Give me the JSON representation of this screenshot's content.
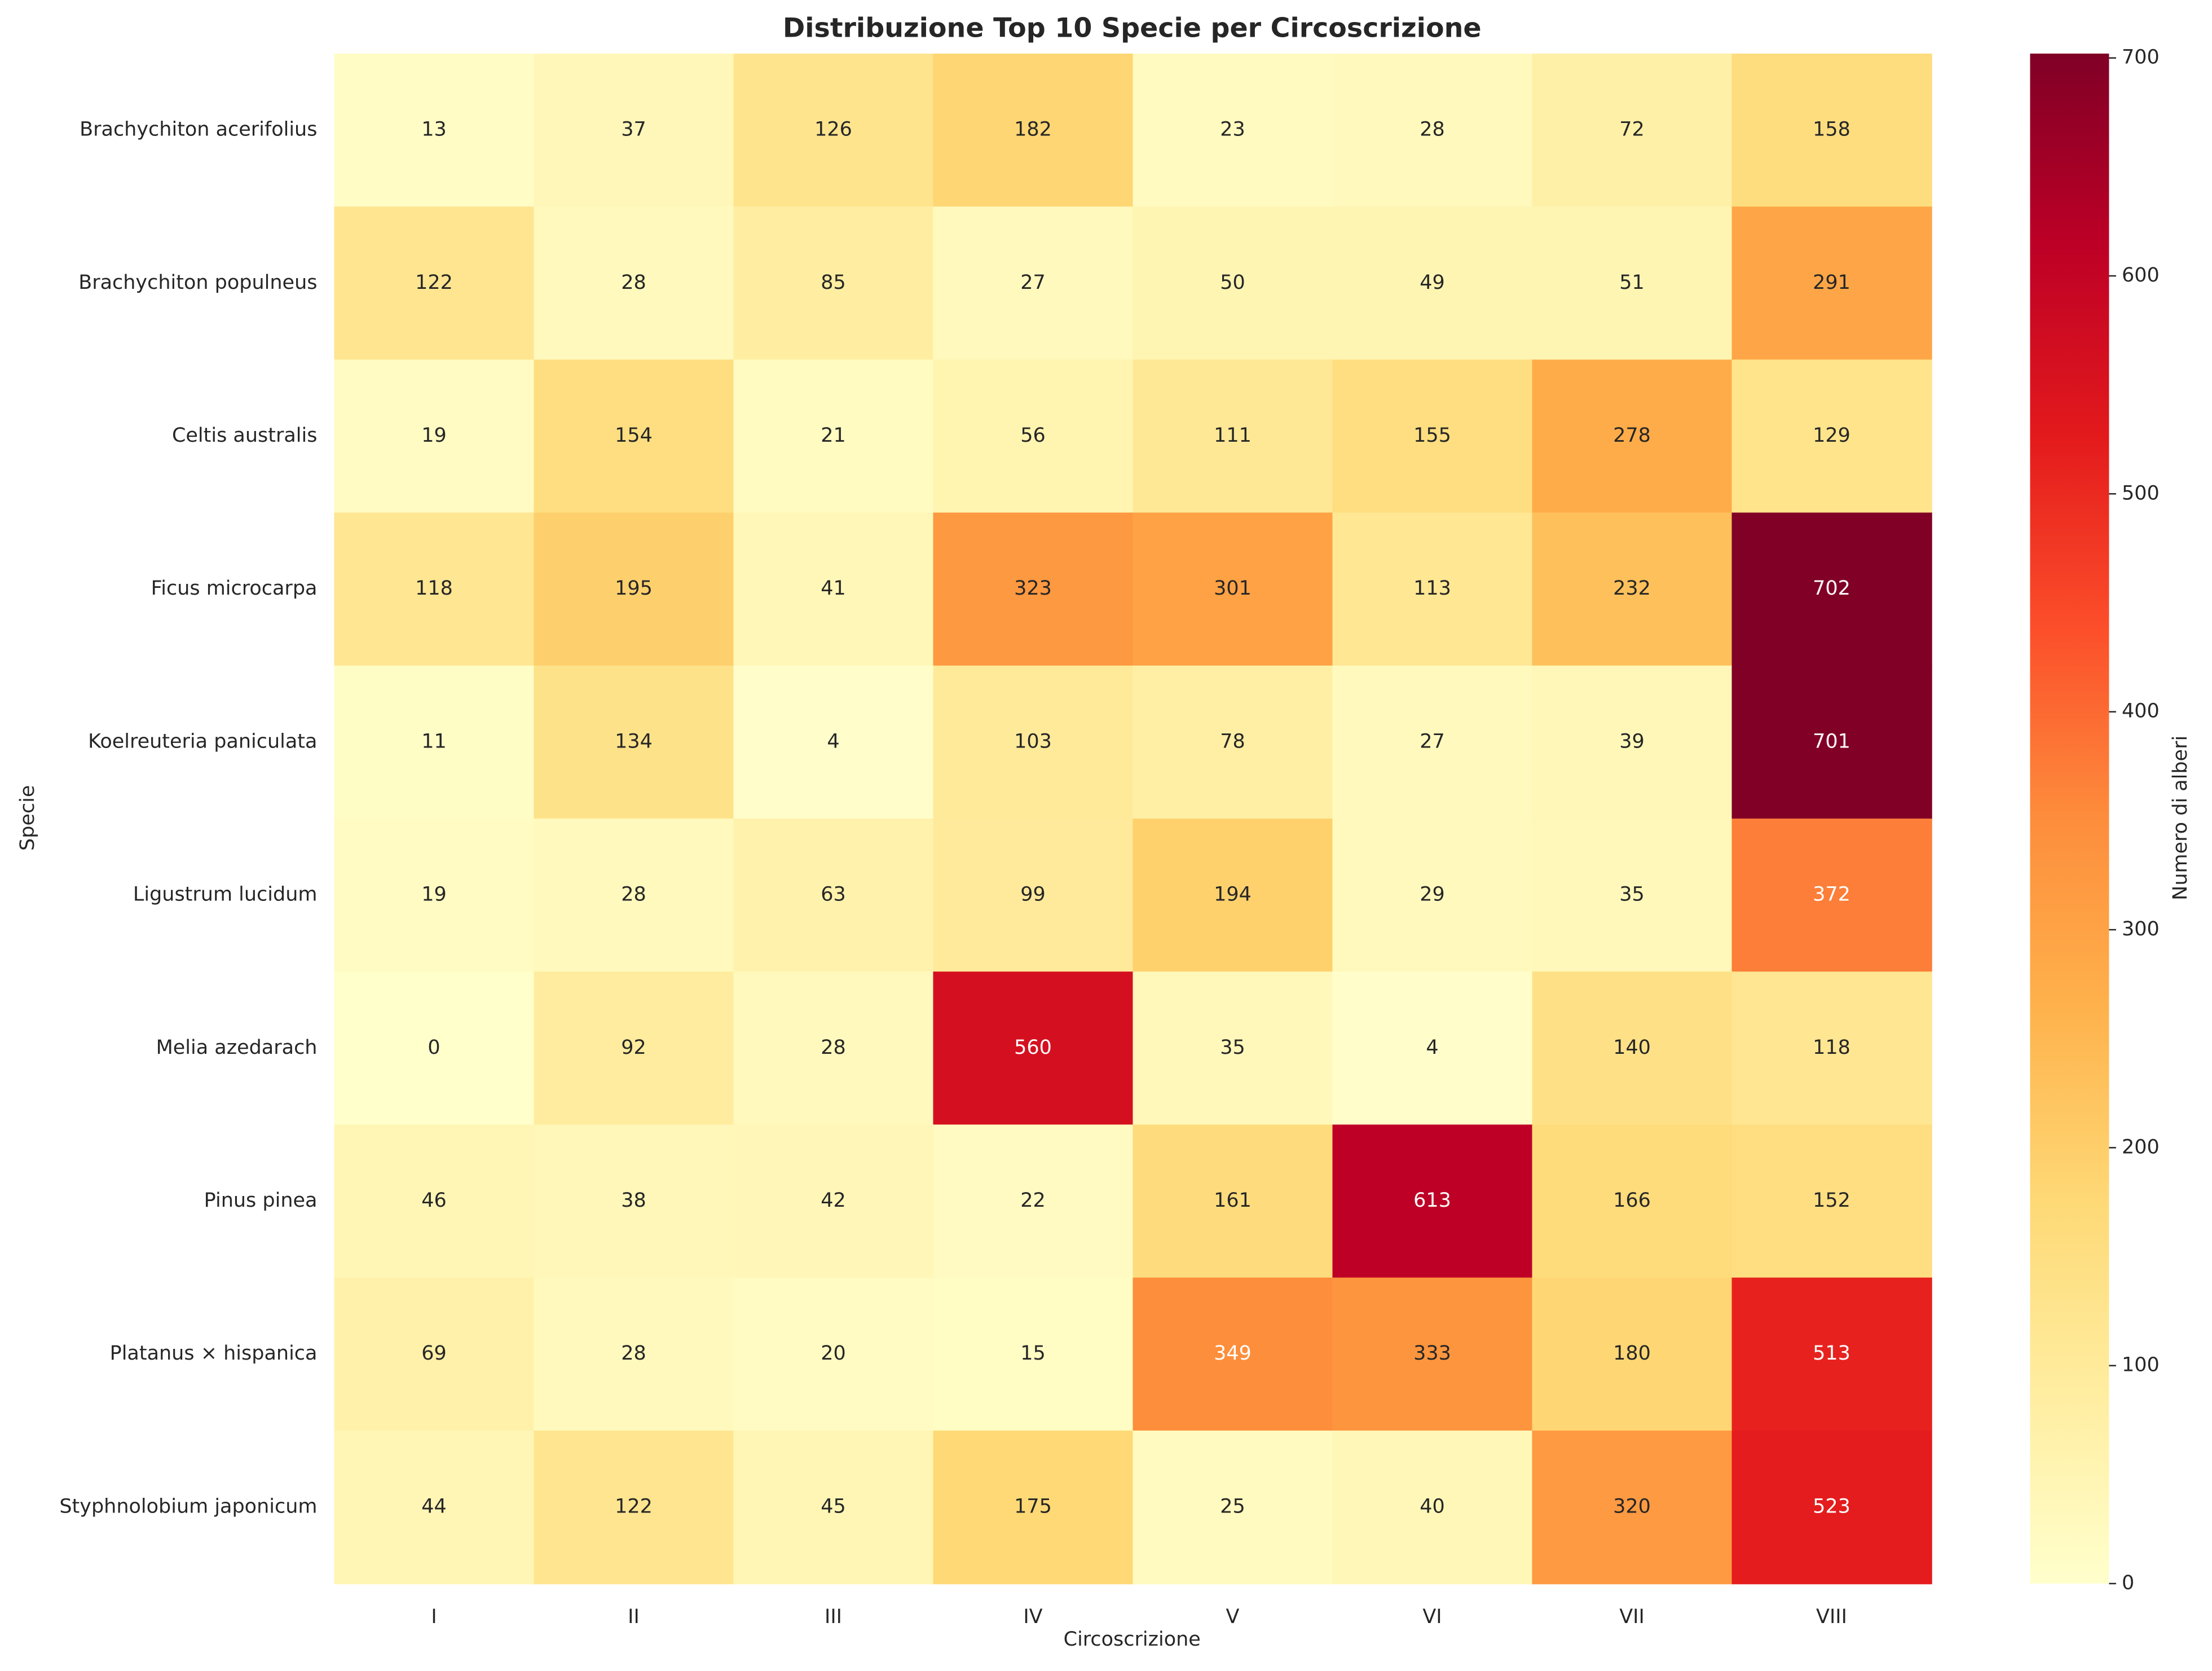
{
  "chart_data": {
    "type": "heatmap",
    "title": "Distribuzione Top 10 Specie per Circoscrizione",
    "x_label": "Circoscrizione",
    "y_label": "Specie",
    "colorbar_label": "Numero di alberi",
    "x_categories": [
      "I",
      "II",
      "III",
      "IV",
      "V",
      "VI",
      "VII",
      "VIII"
    ],
    "y_categories": [
      "Brachychiton acerifolius",
      "Brachychiton populneus",
      "Celtis australis",
      "Ficus microcarpa",
      "Koelreuteria paniculata",
      "Ligustrum lucidum",
      "Melia azedarach",
      "Pinus pinea",
      "Platanus × hispanica",
      "Styphnolobium japonicum"
    ],
    "values": [
      [
        13,
        37,
        126,
        182,
        23,
        28,
        72,
        158
      ],
      [
        122,
        28,
        85,
        27,
        50,
        49,
        51,
        291
      ],
      [
        19,
        154,
        21,
        56,
        111,
        155,
        278,
        129
      ],
      [
        118,
        195,
        41,
        323,
        301,
        113,
        232,
        702
      ],
      [
        11,
        134,
        4,
        103,
        78,
        27,
        39,
        701
      ],
      [
        19,
        28,
        63,
        99,
        194,
        29,
        35,
        372
      ],
      [
        0,
        92,
        28,
        560,
        35,
        4,
        140,
        118
      ],
      [
        46,
        38,
        42,
        22,
        161,
        613,
        166,
        152
      ],
      [
        69,
        28,
        20,
        15,
        349,
        333,
        180,
        513
      ],
      [
        44,
        122,
        45,
        175,
        25,
        40,
        320,
        523
      ]
    ],
    "colormap": [
      "#ffffcc",
      "#ffeda0",
      "#fed976",
      "#feb24c",
      "#fd8d3c",
      "#fc4e2a",
      "#e31a1c",
      "#bd0026",
      "#800026"
    ],
    "clim": [
      0,
      702
    ],
    "cticks": [
      0,
      100,
      200,
      300,
      400,
      500,
      600,
      700
    ]
  }
}
